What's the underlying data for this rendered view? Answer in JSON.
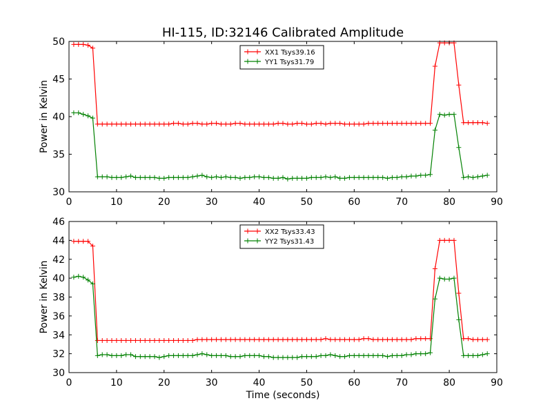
{
  "figure": {
    "title": "HI-115, ID:32146 Calibrated Amplitude"
  },
  "chart_data": [
    {
      "type": "line",
      "ylabel": "Power in Kelvin",
      "xlabel": "",
      "xlim": [
        0,
        90
      ],
      "ylim": [
        30,
        50
      ],
      "xticks": [
        0,
        10,
        20,
        30,
        40,
        50,
        60,
        70,
        80,
        90
      ],
      "yticks": [
        30,
        35,
        40,
        45,
        50
      ],
      "legend_position": "top-center",
      "series": [
        {
          "name": "XX1 Tsys39.16",
          "color": "#ff0000",
          "x": [
            1,
            2,
            3,
            4,
            5,
            6,
            7,
            8,
            9,
            10,
            11,
            12,
            13,
            14,
            15,
            16,
            17,
            18,
            19,
            20,
            21,
            22,
            23,
            24,
            25,
            26,
            27,
            28,
            29,
            30,
            31,
            32,
            33,
            34,
            35,
            36,
            37,
            38,
            39,
            40,
            41,
            42,
            43,
            44,
            45,
            46,
            47,
            48,
            49,
            50,
            51,
            52,
            53,
            54,
            55,
            56,
            57,
            58,
            59,
            60,
            61,
            62,
            63,
            64,
            65,
            66,
            67,
            68,
            69,
            70,
            71,
            72,
            73,
            74,
            75,
            76,
            77,
            78,
            79,
            80,
            81,
            82,
            83,
            84,
            85,
            86,
            87,
            88
          ],
          "y": [
            49.6,
            49.6,
            49.6,
            49.5,
            49.1,
            39.0,
            39.0,
            39.0,
            39.0,
            39.0,
            39.0,
            39.0,
            39.0,
            39.0,
            39.0,
            39.0,
            39.0,
            39.0,
            39.0,
            39.0,
            39.0,
            39.1,
            39.1,
            39.0,
            39.0,
            39.1,
            39.1,
            39.0,
            39.0,
            39.1,
            39.1,
            39.0,
            39.0,
            39.0,
            39.1,
            39.1,
            39.0,
            39.0,
            39.0,
            39.0,
            39.0,
            39.0,
            39.0,
            39.1,
            39.1,
            39.0,
            39.0,
            39.1,
            39.1,
            39.0,
            39.0,
            39.1,
            39.1,
            39.0,
            39.1,
            39.1,
            39.1,
            39.0,
            39.0,
            39.0,
            39.0,
            39.0,
            39.1,
            39.1,
            39.1,
            39.1,
            39.1,
            39.1,
            39.1,
            39.1,
            39.1,
            39.1,
            39.1,
            39.1,
            39.1,
            39.1,
            46.7,
            49.8,
            49.8,
            49.8,
            49.8,
            44.2,
            39.2,
            39.2,
            39.2,
            39.2,
            39.2,
            39.1
          ]
        },
        {
          "name": "YY1 Tsys31.79",
          "color": "#008000",
          "x": [
            1,
            2,
            3,
            4,
            5,
            6,
            7,
            8,
            9,
            10,
            11,
            12,
            13,
            14,
            15,
            16,
            17,
            18,
            19,
            20,
            21,
            22,
            23,
            24,
            25,
            26,
            27,
            28,
            29,
            30,
            31,
            32,
            33,
            34,
            35,
            36,
            37,
            38,
            39,
            40,
            41,
            42,
            43,
            44,
            45,
            46,
            47,
            48,
            49,
            50,
            51,
            52,
            53,
            54,
            55,
            56,
            57,
            58,
            59,
            60,
            61,
            62,
            63,
            64,
            65,
            66,
            67,
            68,
            69,
            70,
            71,
            72,
            73,
            74,
            75,
            76,
            77,
            78,
            79,
            80,
            81,
            82,
            83,
            84,
            85,
            86,
            87,
            88
          ],
          "y": [
            40.5,
            40.5,
            40.3,
            40.1,
            39.8,
            32.0,
            32.0,
            32.0,
            31.9,
            31.9,
            31.9,
            32.0,
            32.1,
            31.9,
            31.9,
            31.9,
            31.9,
            31.9,
            31.8,
            31.8,
            31.9,
            31.9,
            31.9,
            31.9,
            31.9,
            32.0,
            32.1,
            32.2,
            32.0,
            31.9,
            32.0,
            31.9,
            32.0,
            31.9,
            31.9,
            31.8,
            31.9,
            31.9,
            32.0,
            32.0,
            31.9,
            31.9,
            31.8,
            31.8,
            31.9,
            31.7,
            31.8,
            31.8,
            31.8,
            31.8,
            31.9,
            31.9,
            31.9,
            32.0,
            31.9,
            32.0,
            31.8,
            31.8,
            31.9,
            31.9,
            31.9,
            31.9,
            31.9,
            31.9,
            31.9,
            31.9,
            31.8,
            31.9,
            31.9,
            32.0,
            32.0,
            32.1,
            32.1,
            32.2,
            32.2,
            32.3,
            38.2,
            40.3,
            40.2,
            40.3,
            40.3,
            35.9,
            31.9,
            32.0,
            31.9,
            32.0,
            32.1,
            32.2
          ]
        }
      ]
    },
    {
      "type": "line",
      "ylabel": "Power in Kelvin",
      "xlabel": "Time (seconds)",
      "xlim": [
        0,
        90
      ],
      "ylim": [
        30,
        46
      ],
      "xticks": [
        0,
        10,
        20,
        30,
        40,
        50,
        60,
        70,
        80,
        90
      ],
      "yticks": [
        30,
        32,
        34,
        36,
        38,
        40,
        42,
        44,
        46
      ],
      "legend_position": "top-center",
      "series": [
        {
          "name": "XX2 Tsys33.43",
          "color": "#ff0000",
          "x": [
            1,
            2,
            3,
            4,
            5,
            6,
            7,
            8,
            9,
            10,
            11,
            12,
            13,
            14,
            15,
            16,
            17,
            18,
            19,
            20,
            21,
            22,
            23,
            24,
            25,
            26,
            27,
            28,
            29,
            30,
            31,
            32,
            33,
            34,
            35,
            36,
            37,
            38,
            39,
            40,
            41,
            42,
            43,
            44,
            45,
            46,
            47,
            48,
            49,
            50,
            51,
            52,
            53,
            54,
            55,
            56,
            57,
            58,
            59,
            60,
            61,
            62,
            63,
            64,
            65,
            66,
            67,
            68,
            69,
            70,
            71,
            72,
            73,
            74,
            75,
            76,
            77,
            78,
            79,
            80,
            81,
            82,
            83,
            84,
            85,
            86,
            87,
            88
          ],
          "y": [
            43.9,
            43.9,
            43.9,
            43.9,
            43.4,
            33.4,
            33.4,
            33.4,
            33.4,
            33.4,
            33.4,
            33.4,
            33.4,
            33.4,
            33.4,
            33.4,
            33.4,
            33.4,
            33.4,
            33.4,
            33.4,
            33.4,
            33.4,
            33.4,
            33.4,
            33.4,
            33.5,
            33.5,
            33.5,
            33.5,
            33.5,
            33.5,
            33.5,
            33.5,
            33.5,
            33.5,
            33.5,
            33.5,
            33.5,
            33.5,
            33.5,
            33.5,
            33.5,
            33.5,
            33.5,
            33.5,
            33.5,
            33.5,
            33.5,
            33.5,
            33.5,
            33.5,
            33.5,
            33.6,
            33.5,
            33.5,
            33.5,
            33.5,
            33.5,
            33.5,
            33.5,
            33.6,
            33.6,
            33.5,
            33.5,
            33.5,
            33.5,
            33.5,
            33.5,
            33.5,
            33.5,
            33.5,
            33.6,
            33.6,
            33.6,
            33.6,
            41.0,
            44.0,
            44.0,
            44.0,
            44.0,
            38.4,
            33.6,
            33.6,
            33.5,
            33.5,
            33.5,
            33.5
          ]
        },
        {
          "name": "YY2 Tsys31.43",
          "color": "#008000",
          "x": [
            1,
            2,
            3,
            4,
            5,
            6,
            7,
            8,
            9,
            10,
            11,
            12,
            13,
            14,
            15,
            16,
            17,
            18,
            19,
            20,
            21,
            22,
            23,
            24,
            25,
            26,
            27,
            28,
            29,
            30,
            31,
            32,
            33,
            34,
            35,
            36,
            37,
            38,
            39,
            40,
            41,
            42,
            43,
            44,
            45,
            46,
            47,
            48,
            49,
            50,
            51,
            52,
            53,
            54,
            55,
            56,
            57,
            58,
            59,
            60,
            61,
            62,
            63,
            64,
            65,
            66,
            67,
            68,
            69,
            70,
            71,
            72,
            73,
            74,
            75,
            76,
            77,
            78,
            79,
            80,
            81,
            82,
            83,
            84,
            85,
            86,
            87,
            88
          ],
          "y": [
            40.1,
            40.2,
            40.1,
            39.8,
            39.4,
            31.8,
            31.9,
            31.9,
            31.8,
            31.8,
            31.8,
            31.9,
            31.9,
            31.7,
            31.7,
            31.7,
            31.7,
            31.7,
            31.6,
            31.7,
            31.8,
            31.8,
            31.8,
            31.8,
            31.8,
            31.8,
            31.9,
            32.0,
            31.9,
            31.8,
            31.8,
            31.8,
            31.8,
            31.7,
            31.7,
            31.7,
            31.8,
            31.8,
            31.8,
            31.8,
            31.7,
            31.7,
            31.6,
            31.6,
            31.6,
            31.6,
            31.6,
            31.6,
            31.7,
            31.7,
            31.7,
            31.7,
            31.8,
            31.8,
            31.9,
            31.8,
            31.7,
            31.7,
            31.8,
            31.8,
            31.8,
            31.8,
            31.8,
            31.8,
            31.8,
            31.8,
            31.7,
            31.8,
            31.8,
            31.8,
            31.9,
            31.9,
            32.0,
            32.0,
            32.0,
            32.1,
            37.8,
            40.0,
            39.9,
            39.9,
            40.0,
            35.6,
            31.8,
            31.8,
            31.8,
            31.8,
            31.9,
            32.0
          ]
        }
      ]
    }
  ]
}
